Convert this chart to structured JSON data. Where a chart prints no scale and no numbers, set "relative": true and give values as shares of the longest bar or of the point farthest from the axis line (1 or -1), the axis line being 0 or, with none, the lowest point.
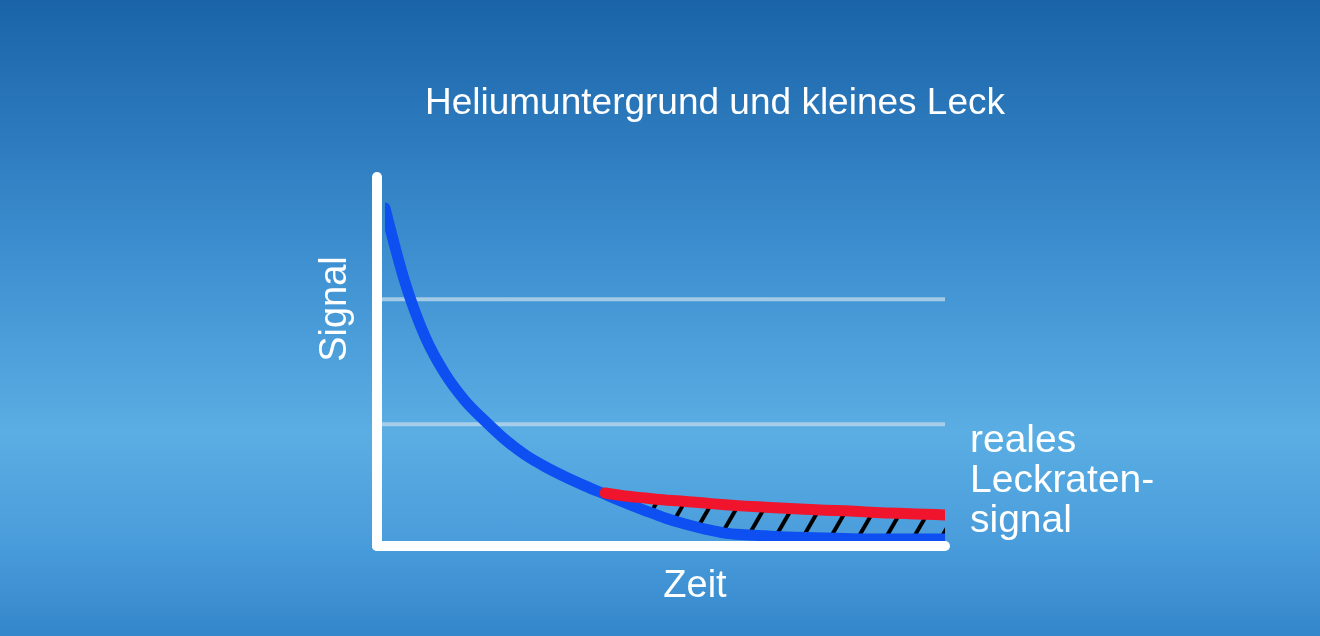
{
  "chart_data": {
    "type": "line",
    "title": "Heliumuntergrund und kleines Leck",
    "xlabel": "Zeit",
    "ylabel": "Signal",
    "relative": true,
    "categories": [
      null,
      null,
      null,
      null,
      null,
      null,
      null,
      null,
      null,
      null,
      null,
      null,
      null,
      null,
      null,
      null,
      null,
      null,
      null,
      null,
      null,
      null,
      null,
      null,
      null,
      null,
      null,
      null,
      null
    ],
    "series": [
      {
        "color": "#0d4ff0",
        "values": [
          1,
          0.78,
          0.62,
          0.51,
          0.43,
          0.37,
          0.315,
          0.27,
          0.235,
          0.205,
          0.178,
          0.153,
          0.128,
          0.105,
          0.083,
          0.065,
          0.05,
          0.038,
          0.033,
          0.03,
          0.027,
          0.025,
          0.024,
          0.022,
          0.021,
          0.021,
          0.021,
          0.021,
          0.021
        ]
      },
      {
        "name": "reales Leckraten-signal",
        "color": "#f0142c",
        "values": [
          null,
          null,
          null,
          null,
          null,
          null,
          null,
          null,
          null,
          null,
          null,
          0.157,
          0.148,
          0.142,
          0.136,
          0.132,
          0.127,
          0.122,
          0.118,
          0.115,
          0.112,
          0.109,
          0.106,
          0.104,
          0.101,
          0.098,
          0.096,
          0.094,
          0.092
        ],
        "lower": [
          null,
          null,
          null,
          null,
          null,
          null,
          null,
          null,
          null,
          null,
          null,
          0.153,
          0.128,
          0.105,
          0.083,
          0.065,
          0.05,
          0.038,
          0.033,
          0.03,
          0.027,
          0.025,
          0.024,
          0.022,
          0.021,
          0.021,
          0.021,
          0.021,
          0.021
        ],
        "upper": [
          null,
          null,
          null,
          null,
          null,
          null,
          null,
          null,
          null,
          null,
          null,
          0.157,
          0.148,
          0.142,
          0.136,
          0.132,
          0.127,
          0.122,
          0.118,
          0.115,
          0.112,
          0.109,
          0.106,
          0.104,
          0.101,
          0.098,
          0.096,
          0.094,
          0.092
        ]
      }
    ],
    "ref_lines": [
      {
        "axis": "y",
        "value": 0.73,
        "color": "#b4d2ea"
      },
      {
        "axis": "y",
        "value": 0.36,
        "color": "#b4d2ea"
      }
    ],
    "marker": "none",
    "line_style": "solid"
  }
}
